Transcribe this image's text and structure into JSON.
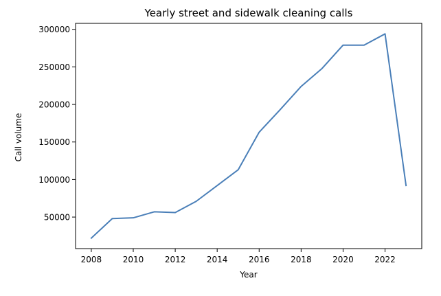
{
  "chart_data": {
    "type": "line",
    "title": "Yearly street and sidewalk cleaning calls",
    "xlabel": "Year",
    "ylabel": "Call volume",
    "x": [
      2008,
      2009,
      2010,
      2011,
      2012,
      2013,
      2014,
      2015,
      2016,
      2017,
      2018,
      2019,
      2020,
      2021,
      2022,
      2023
    ],
    "series": [
      {
        "color": "#4a7fb8",
        "values": [
          22000,
          48000,
          49000,
          57000,
          56000,
          71000,
          92000,
          113000,
          163000,
          193000,
          224000,
          248000,
          279000,
          279000,
          294000,
          92000
        ]
      }
    ],
    "xlim": [
      2007.25,
      2023.75
    ],
    "ylim": [
      8000,
      308000
    ],
    "xticks": [
      2008,
      2010,
      2012,
      2014,
      2016,
      2018,
      2020,
      2022
    ],
    "yticks": [
      50000,
      100000,
      150000,
      200000,
      250000,
      300000
    ],
    "xtick_labels": [
      "2008",
      "2010",
      "2012",
      "2014",
      "2016",
      "2018",
      "2020",
      "2022"
    ],
    "ytick_labels": [
      "50000",
      "100000",
      "150000",
      "200000",
      "250000",
      "300000"
    ],
    "grid": false,
    "legend": "none"
  }
}
